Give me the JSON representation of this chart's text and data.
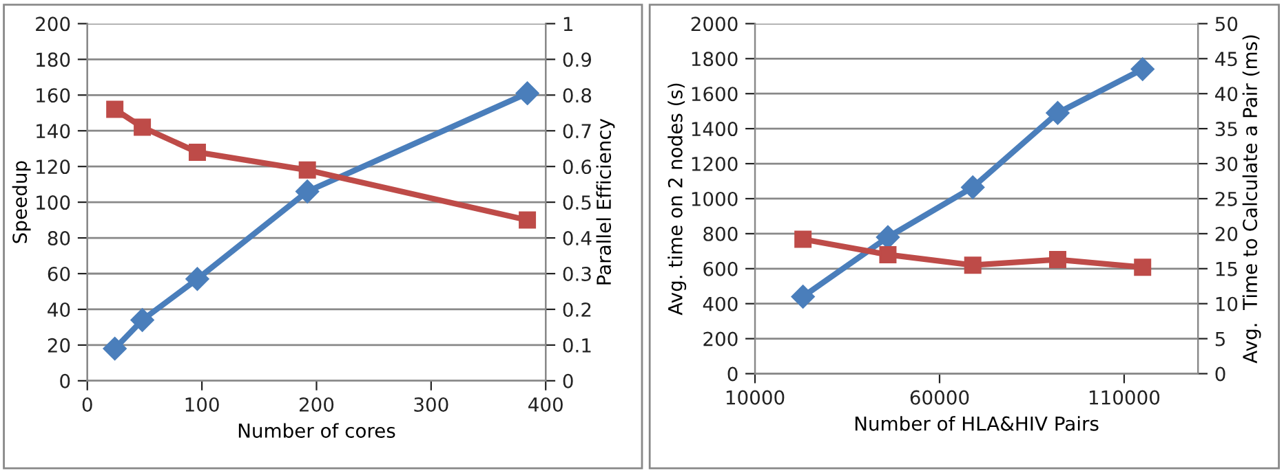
{
  "chart_data": [
    {
      "type": "line",
      "xlabel": "Number of cores",
      "ylabel": "Speedup",
      "y2label": "Parallel Efficiency",
      "x": [
        24,
        48,
        96,
        192,
        384
      ],
      "xlim": [
        0,
        400
      ],
      "xticks": [
        0,
        100,
        200,
        300,
        400
      ],
      "ylim": [
        0,
        200
      ],
      "yticks": [
        0,
        20,
        40,
        60,
        80,
        100,
        120,
        140,
        160,
        180,
        200
      ],
      "y2lim": [
        0,
        1
      ],
      "y2ticks": [
        0,
        0.1,
        0.2,
        0.3,
        0.4,
        0.5,
        0.6,
        0.7,
        0.8,
        0.9,
        1
      ],
      "grid": "y",
      "line_style": "solid",
      "series": [
        {
          "color": "#4a7ebb",
          "marker": "diamond",
          "values": [
            18,
            34,
            57,
            106,
            161
          ]
        },
        {
          "color": "#be4b48",
          "marker": "square",
          "axis": "y2",
          "values": [
            0.76,
            0.71,
            0.64,
            0.59,
            0.45
          ]
        }
      ]
    },
    {
      "type": "line",
      "xlabel": "Number of HLA&HIV Pairs",
      "ylabel": "Avg. time on 2 nodes (s)",
      "y2label": "Avg.  Time to Calculate a Pair (ms)",
      "x": [
        23000,
        46000,
        69000,
        92000,
        115000
      ],
      "xlim": [
        10000,
        130000
      ],
      "xticks": [
        10000,
        60000,
        110000
      ],
      "ylim": [
        0,
        2000
      ],
      "yticks": [
        0,
        200,
        400,
        600,
        800,
        1000,
        1200,
        1400,
        1600,
        1800,
        2000
      ],
      "y2lim": [
        0,
        50
      ],
      "y2ticks": [
        0,
        5,
        10,
        15,
        20,
        25,
        30,
        35,
        40,
        45,
        50
      ],
      "grid": "y",
      "line_style": "solid",
      "series": [
        {
          "color": "#4a7ebb",
          "marker": "diamond",
          "values": [
            440,
            780,
            1065,
            1490,
            1740
          ]
        },
        {
          "color": "#be4b48",
          "marker": "square",
          "axis": "y2",
          "values": [
            19.2,
            17,
            15.5,
            16.3,
            15.2
          ]
        }
      ]
    }
  ]
}
